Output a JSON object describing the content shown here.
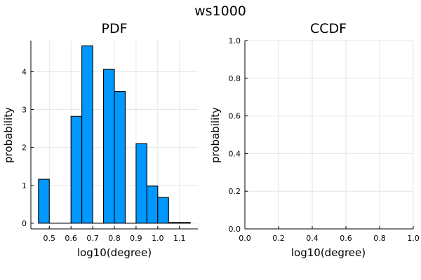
{
  "suptitle": "ws1000",
  "chart_data": [
    {
      "type": "bar",
      "title": "PDF",
      "xlabel": "log10(degree)",
      "ylabel": "probability",
      "bin_edges": [
        0.45,
        0.5,
        0.55,
        0.6,
        0.65,
        0.7,
        0.75,
        0.8,
        0.85,
        0.9,
        0.95,
        1.0,
        1.05,
        1.1,
        1.15
      ],
      "values": [
        1.16,
        0.0,
        0.0,
        2.82,
        4.68,
        0.0,
        4.06,
        3.48,
        0.0,
        2.1,
        0.98,
        0.68,
        0.02,
        0.02
      ],
      "xlim": [
        0.415,
        1.185
      ],
      "ylim": [
        -0.15,
        4.82
      ],
      "xticks": [
        "0.5",
        "0.6",
        "0.7",
        "0.8",
        "0.9",
        "1.0",
        "1.1"
      ],
      "yticks": [
        "0",
        "1",
        "2",
        "3",
        "4"
      ],
      "grid": true,
      "color": "#0097ff"
    },
    {
      "type": "line",
      "title": "CCDF",
      "xlabel": "log10(degree)",
      "ylabel": "probability",
      "series": [],
      "xlim": [
        0.0,
        1.0
      ],
      "ylim": [
        0.0,
        1.0
      ],
      "xticks": [
        "0.0",
        "0.2",
        "0.4",
        "0.6",
        "0.8",
        "1.0"
      ],
      "yticks": [
        "0.0",
        "0.2",
        "0.4",
        "0.6",
        "0.8",
        "1.0"
      ],
      "grid": true
    }
  ]
}
